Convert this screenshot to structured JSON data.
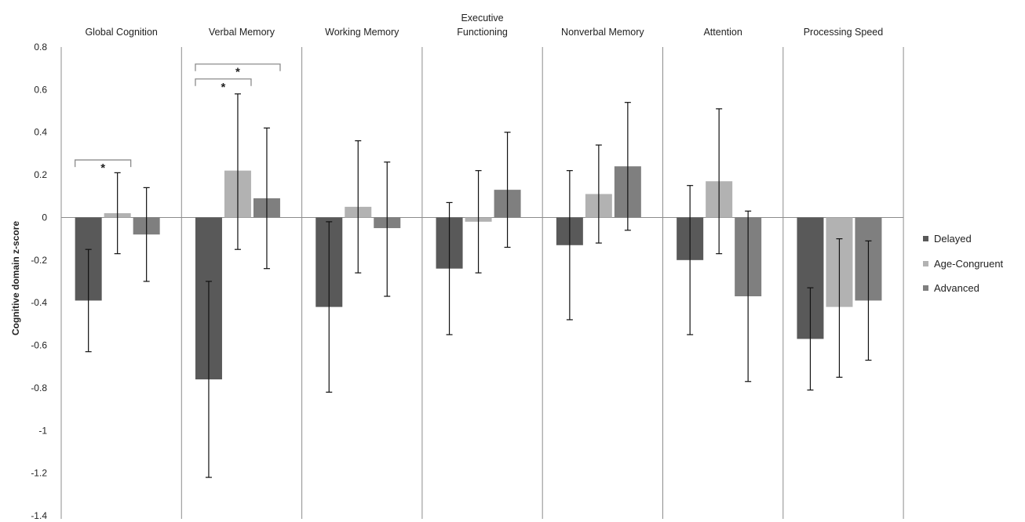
{
  "chart_data": {
    "type": "bar",
    "ylabel": "Cognitive domain z-score",
    "ylim": [
      -1.4,
      0.8
    ],
    "yticks": [
      0.8,
      0.6,
      0.4,
      0.2,
      0,
      -0.2,
      -0.4,
      -0.6,
      -0.8,
      -1,
      -1.2,
      -1.4
    ],
    "ytick_labels": [
      "0.8",
      "0.6",
      "0.4",
      "0.2",
      "0",
      "-0.2",
      "-0.4",
      "-0.6",
      "-0.8",
      "-1",
      "-1.2",
      "-1.4"
    ],
    "categories": [
      [
        "Global Cognition"
      ],
      [
        "Verbal Memory"
      ],
      [
        "Working Memory"
      ],
      [
        "Executive",
        "Functioning"
      ],
      [
        "Nonverbal Memory"
      ],
      [
        "Attention"
      ],
      [
        "Processing Speed"
      ]
    ],
    "series": [
      {
        "name": "Delayed",
        "color": "#595959",
        "values": [
          -0.39,
          -0.76,
          -0.42,
          -0.24,
          -0.13,
          -0.2,
          -0.57
        ],
        "err_low": [
          -0.63,
          -1.22,
          -0.82,
          -0.55,
          -0.48,
          -0.55,
          -0.81
        ],
        "err_high": [
          -0.15,
          -0.3,
          -0.02,
          0.07,
          0.22,
          0.15,
          -0.33
        ]
      },
      {
        "name": "Age-Congruent",
        "color": "#b2b2b2",
        "values": [
          0.02,
          0.22,
          0.05,
          -0.02,
          0.11,
          0.17,
          -0.42
        ],
        "err_low": [
          -0.17,
          -0.15,
          -0.26,
          -0.26,
          -0.12,
          -0.17,
          -0.75
        ],
        "err_high": [
          0.21,
          0.58,
          0.36,
          0.22,
          0.34,
          0.51,
          -0.1
        ]
      },
      {
        "name": "Advanced",
        "color": "#7f7f7f",
        "values": [
          -0.08,
          0.09,
          -0.05,
          0.13,
          0.24,
          -0.37,
          -0.39
        ],
        "err_low": [
          -0.3,
          -0.24,
          -0.37,
          -0.14,
          -0.06,
          -0.77,
          -0.67
        ],
        "err_high": [
          0.14,
          0.42,
          0.26,
          0.4,
          0.54,
          0.03,
          -0.11
        ]
      }
    ],
    "significance": [
      {
        "category": 0,
        "from": 0,
        "to": 1,
        "y": 0.27,
        "label": "*"
      },
      {
        "category": 1,
        "from": 0,
        "to": 1,
        "y": 0.65,
        "label": "*"
      },
      {
        "category": 1,
        "from": 0,
        "to": 2,
        "y": 0.72,
        "label": "*"
      }
    ],
    "legend_position": "right",
    "grid": false
  }
}
